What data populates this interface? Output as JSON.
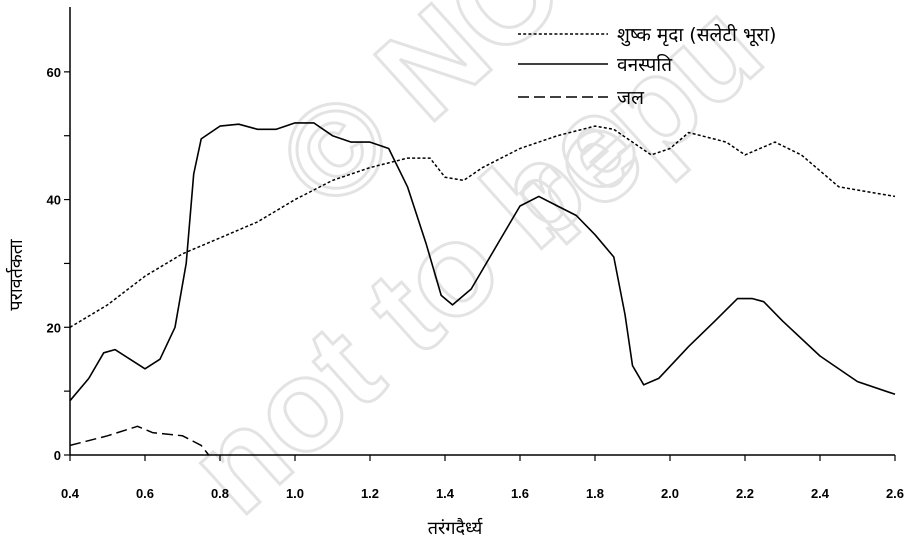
{
  "chart_data": {
    "type": "line",
    "xlabel": "तरंगदैर्ध्य",
    "ylabel": "परावर्तकता",
    "xlim": [
      0.4,
      2.6
    ],
    "ylim": [
      0,
      70
    ],
    "x_ticks": [
      0.4,
      0.6,
      0.8,
      1.0,
      1.2,
      1.4,
      1.6,
      1.8,
      2.0,
      2.2,
      2.4,
      2.6
    ],
    "x_tick_labels": [
      "0.4",
      "0.6",
      "0.8",
      "1.0",
      "1.2",
      "1.4",
      "1.6",
      "1.8",
      "2.0",
      "2.2",
      "2.4",
      "2.6"
    ],
    "y_ticks": [
      0,
      20,
      40,
      60
    ],
    "y_tick_labels": [
      "0",
      "20",
      "40",
      "60"
    ],
    "grid": false,
    "legend_position": "top-right",
    "watermark": "© NCERT not to be republished",
    "series": [
      {
        "name": "शुष्क मृदा (सलेटी भूरा)",
        "style": "dotted",
        "color": "#000000",
        "points": [
          [
            0.4,
            20
          ],
          [
            0.5,
            23.5
          ],
          [
            0.6,
            28
          ],
          [
            0.7,
            31.5
          ],
          [
            0.8,
            34
          ],
          [
            0.9,
            36.5
          ],
          [
            1.0,
            40
          ],
          [
            1.1,
            43
          ],
          [
            1.2,
            45
          ],
          [
            1.3,
            46.5
          ],
          [
            1.36,
            46.5
          ],
          [
            1.4,
            43.5
          ],
          [
            1.45,
            43
          ],
          [
            1.5,
            45
          ],
          [
            1.6,
            48
          ],
          [
            1.7,
            50
          ],
          [
            1.8,
            51.5
          ],
          [
            1.85,
            51
          ],
          [
            1.95,
            47
          ],
          [
            2.0,
            48
          ],
          [
            2.05,
            50.5
          ],
          [
            2.15,
            49
          ],
          [
            2.2,
            47
          ],
          [
            2.28,
            49
          ],
          [
            2.35,
            47
          ],
          [
            2.45,
            42
          ],
          [
            2.6,
            40.5
          ]
        ]
      },
      {
        "name": "वनस्पति",
        "style": "solid",
        "color": "#000000",
        "points": [
          [
            0.4,
            8.5
          ],
          [
            0.45,
            12
          ],
          [
            0.49,
            16
          ],
          [
            0.52,
            16.5
          ],
          [
            0.56,
            15
          ],
          [
            0.6,
            13.5
          ],
          [
            0.64,
            15
          ],
          [
            0.68,
            20
          ],
          [
            0.71,
            30
          ],
          [
            0.73,
            44
          ],
          [
            0.75,
            49.5
          ],
          [
            0.8,
            51.5
          ],
          [
            0.85,
            51.8
          ],
          [
            0.9,
            51
          ],
          [
            0.95,
            51
          ],
          [
            1.0,
            52
          ],
          [
            1.05,
            52
          ],
          [
            1.1,
            50
          ],
          [
            1.15,
            49
          ],
          [
            1.2,
            49
          ],
          [
            1.25,
            48
          ],
          [
            1.3,
            42
          ],
          [
            1.35,
            33
          ],
          [
            1.39,
            25
          ],
          [
            1.42,
            23.5
          ],
          [
            1.47,
            26
          ],
          [
            1.55,
            34
          ],
          [
            1.6,
            39
          ],
          [
            1.65,
            40.5
          ],
          [
            1.7,
            39
          ],
          [
            1.75,
            37.5
          ],
          [
            1.8,
            34.5
          ],
          [
            1.85,
            31
          ],
          [
            1.88,
            22
          ],
          [
            1.9,
            14
          ],
          [
            1.93,
            11
          ],
          [
            1.97,
            12
          ],
          [
            2.05,
            17
          ],
          [
            2.12,
            21
          ],
          [
            2.18,
            24.5
          ],
          [
            2.22,
            24.5
          ],
          [
            2.25,
            24
          ],
          [
            2.3,
            21
          ],
          [
            2.4,
            15.5
          ],
          [
            2.5,
            11.5
          ],
          [
            2.6,
            9.5
          ]
        ]
      },
      {
        "name": "जल",
        "style": "dashed",
        "color": "#000000",
        "points": [
          [
            0.4,
            1.5
          ],
          [
            0.5,
            3
          ],
          [
            0.58,
            4.5
          ],
          [
            0.62,
            3.5
          ],
          [
            0.7,
            3
          ],
          [
            0.75,
            1.5
          ],
          [
            0.77,
            0
          ]
        ]
      }
    ]
  }
}
